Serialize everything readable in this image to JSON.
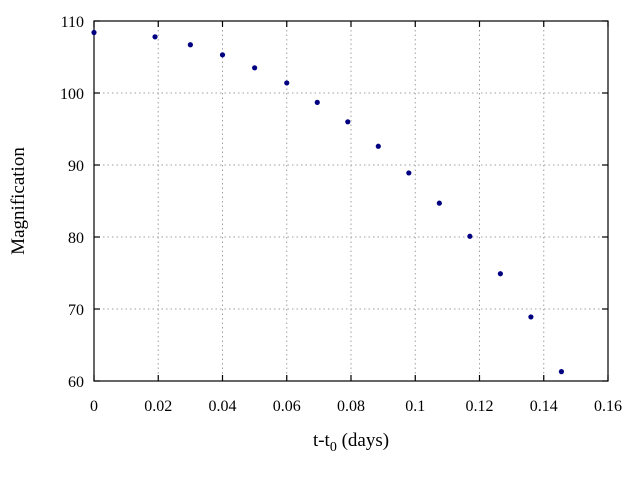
{
  "chart_data": {
    "type": "scatter",
    "xlabel_main": "t-t",
    "xlabel_sub": "0",
    "xlabel_suffix": " (days)",
    "ylabel": "Magnification",
    "xlim": [
      0,
      0.16
    ],
    "ylim": [
      60,
      110
    ],
    "xticks": [
      "0",
      "0.02",
      "0.04",
      "0.06",
      "0.08",
      "0.1",
      "0.12",
      "0.14",
      "0.16"
    ],
    "yticks": [
      "60",
      "70",
      "80",
      "90",
      "100",
      "110"
    ],
    "grid": true,
    "marker_color": "#000080",
    "series": [
      {
        "x": [
          0.0,
          0.019,
          0.03,
          0.04,
          0.05,
          0.06,
          0.0695,
          0.079,
          0.0885,
          0.098,
          0.1075,
          0.117,
          0.1265,
          0.136,
          0.1455
        ],
        "y": [
          108.4,
          107.8,
          106.7,
          105.3,
          103.5,
          101.4,
          98.7,
          96.0,
          92.6,
          88.9,
          84.7,
          80.1,
          74.9,
          68.9,
          61.3
        ]
      }
    ]
  }
}
